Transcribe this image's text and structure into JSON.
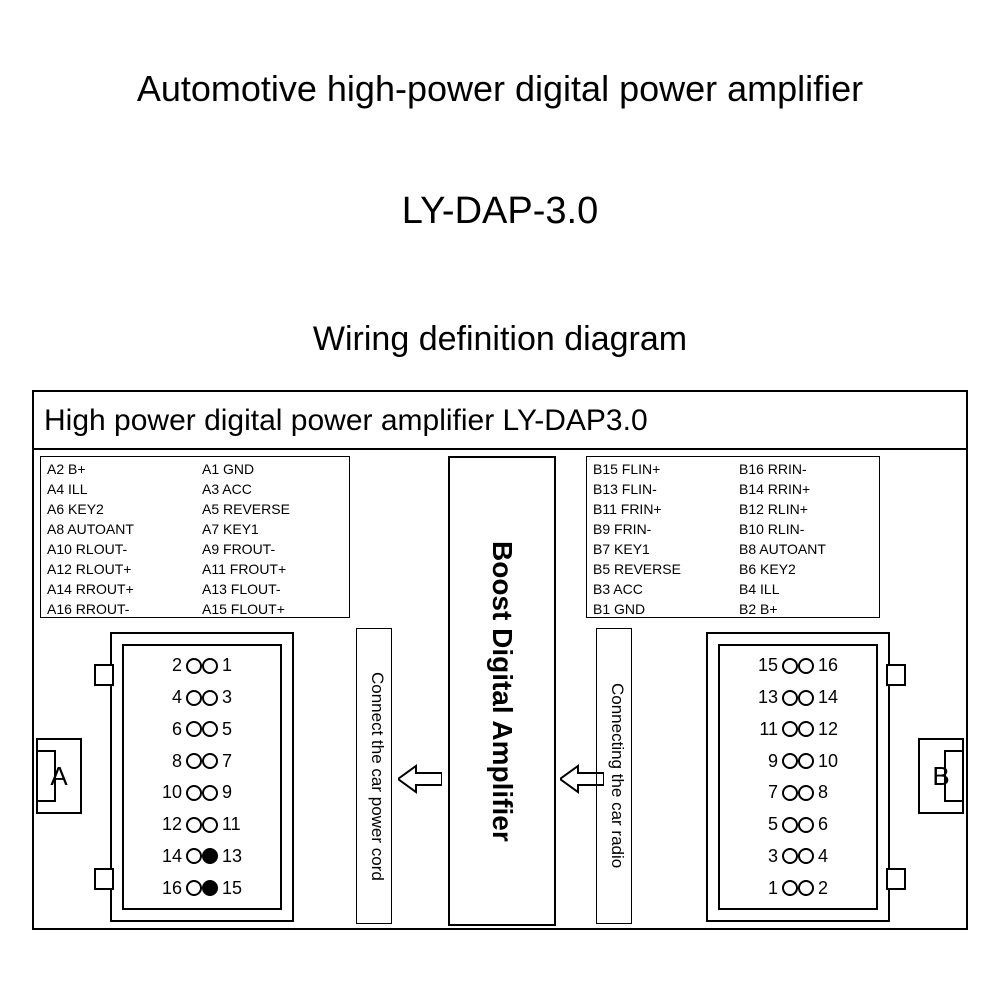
{
  "titles": {
    "main": "Automotive high-power digital power amplifier",
    "model": "LY-DAP-3.0",
    "sub": "Wiring definition diagram",
    "banner": "High power digital power amplifier  LY-DAP3.0"
  },
  "centerLabel": "Boost Digital Amplifier",
  "vLabels": {
    "powerCord": "Connect the car power cord",
    "radio": "Connecting the car radio"
  },
  "tabs": {
    "A": "A",
    "B": "B"
  },
  "pinsA": {
    "colL": [
      "A2   B+",
      "A4   ILL",
      "A6   KEY2",
      "A8   AUTOANT",
      "A10 RLOUT-",
      "A12 RLOUT+",
      "A14 RROUT+",
      "A16 RROUT-"
    ],
    "colR": [
      "A1   GND",
      "A3   ACC",
      "A5   REVERSE",
      "A7   KEY1",
      "A9   FROUT-",
      "A11 FROUT+",
      "A13 FLOUT-",
      "A15 FLOUT+"
    ]
  },
  "pinsB": {
    "colL": [
      "B15 FLIN+",
      "B13 FLIN-",
      "B11 FRIN+",
      "B9   FRIN-",
      "B7   KEY1",
      "B5   REVERSE",
      "B3   ACC",
      "B1   GND"
    ],
    "colR": [
      "B16 RRIN-",
      "B14 RRIN+",
      "B12 RLIN+",
      "B10 RLIN-",
      "B8   AUTOANT",
      "B6   KEY2",
      "B4   ILL",
      "B2   B+"
    ]
  },
  "connA": {
    "rows": [
      {
        "l": "2",
        "lf": false,
        "r": "1",
        "rf": false
      },
      {
        "l": "4",
        "lf": false,
        "r": "3",
        "rf": false
      },
      {
        "l": "6",
        "lf": false,
        "r": "5",
        "rf": false
      },
      {
        "l": "8",
        "lf": false,
        "r": "7",
        "rf": false
      },
      {
        "l": "10",
        "lf": false,
        "r": "9",
        "rf": false
      },
      {
        "l": "12",
        "lf": false,
        "r": "11",
        "rf": false
      },
      {
        "l": "14",
        "lf": false,
        "r": "13",
        "rf": true
      },
      {
        "l": "16",
        "lf": false,
        "r": "15",
        "rf": true
      }
    ]
  },
  "connB": {
    "rows": [
      {
        "l": "15",
        "lf": false,
        "r": "16",
        "rf": false
      },
      {
        "l": "13",
        "lf": false,
        "r": "14",
        "rf": false
      },
      {
        "l": "11",
        "lf": false,
        "r": "12",
        "rf": false
      },
      {
        "l": "9",
        "lf": false,
        "r": "10",
        "rf": false
      },
      {
        "l": "7",
        "lf": false,
        "r": "8",
        "rf": false
      },
      {
        "l": "5",
        "lf": false,
        "r": "6",
        "rf": false
      },
      {
        "l": "3",
        "lf": false,
        "r": "4",
        "rf": false
      },
      {
        "l": "1",
        "lf": false,
        "r": "2",
        "rf": false
      }
    ]
  },
  "style": {
    "bg": "#ffffff",
    "fg": "#000000",
    "border": "#000000"
  }
}
